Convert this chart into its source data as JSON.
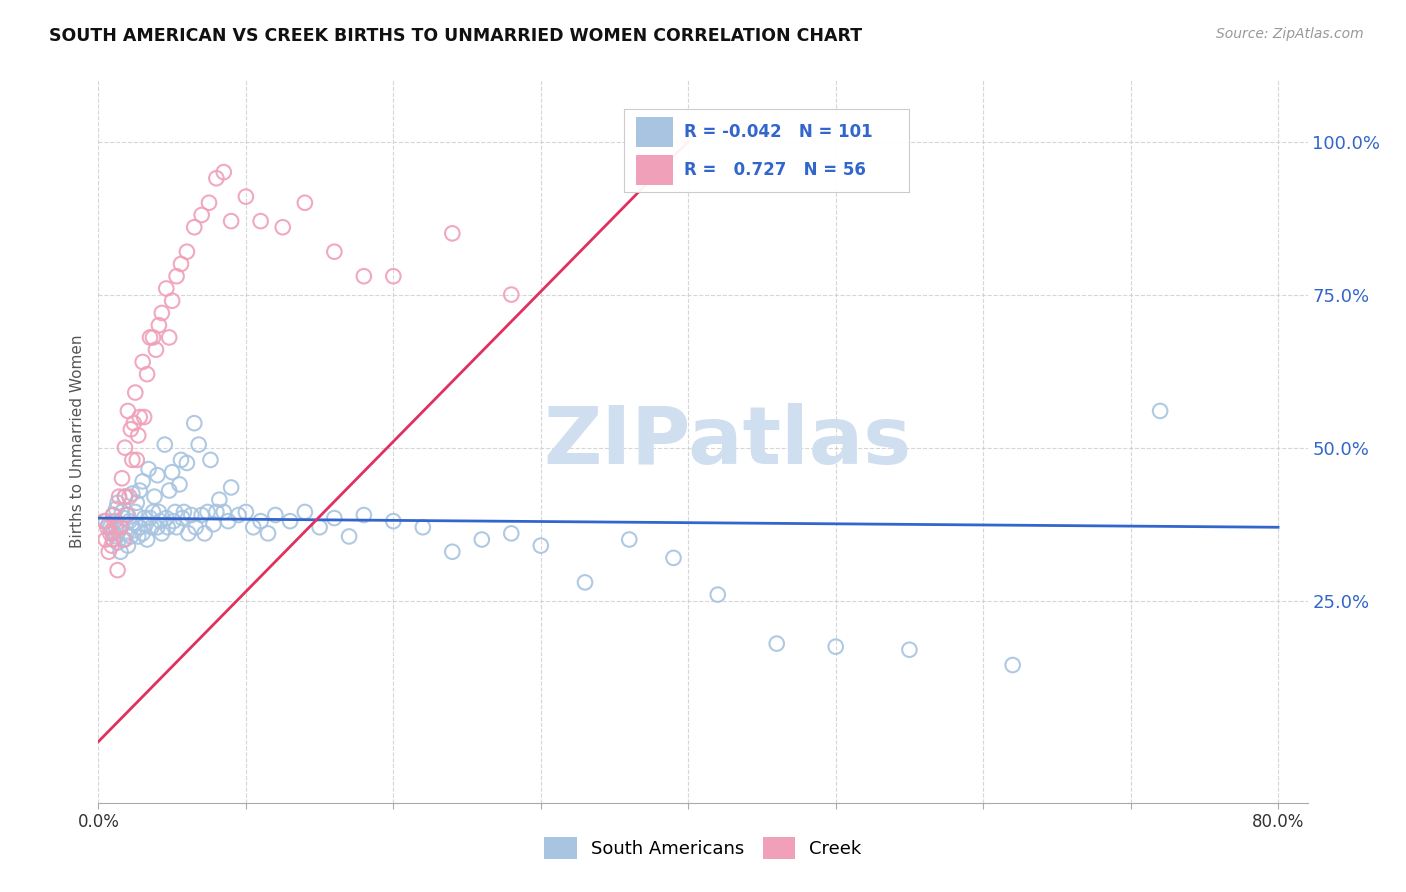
{
  "title": "SOUTH AMERICAN VS CREEK BIRTHS TO UNMARRIED WOMEN CORRELATION CHART",
  "source": "Source: ZipAtlas.com",
  "ylabel": "Births to Unmarried Women",
  "legend_blue_label": "South Americans",
  "legend_pink_label": "Creek",
  "r_blue": "-0.042",
  "n_blue": "101",
  "r_pink": "0.727",
  "n_pink": "56",
  "blue_color": "#a8c4e0",
  "pink_color": "#f0a0b8",
  "blue_line_color": "#3366cc",
  "pink_line_color": "#e03060",
  "watermark_color": "#d0dff0",
  "xlim_min": 0.0,
  "xlim_max": 0.82,
  "ylim_min": -0.08,
  "ylim_max": 1.1,
  "ytick_vals": [
    0.25,
    0.5,
    0.75,
    1.0
  ],
  "ytick_labels": [
    "25.0%",
    "50.0%",
    "75.0%",
    "100.0%"
  ],
  "xtick_vals": [
    0.0,
    0.1,
    0.2,
    0.3,
    0.4,
    0.5,
    0.6,
    0.7,
    0.8
  ],
  "xtick_left_label": "0.0%",
  "xtick_right_label": "80.0%",
  "blue_line_x0": 0.0,
  "blue_line_x1": 0.8,
  "blue_line_y0": 0.385,
  "blue_line_y1": 0.37,
  "pink_line_x0": 0.0,
  "pink_line_x1": 0.4,
  "pink_line_y0": 0.02,
  "pink_line_y1": 1.0,
  "blue_scatter_x": [
    0.005,
    0.007,
    0.008,
    0.009,
    0.01,
    0.01,
    0.01,
    0.012,
    0.012,
    0.013,
    0.013,
    0.014,
    0.015,
    0.015,
    0.016,
    0.017,
    0.018,
    0.018,
    0.019,
    0.02,
    0.02,
    0.021,
    0.022,
    0.023,
    0.024,
    0.025,
    0.025,
    0.026,
    0.027,
    0.028,
    0.028,
    0.03,
    0.03,
    0.031,
    0.032,
    0.033,
    0.034,
    0.035,
    0.036,
    0.037,
    0.038,
    0.04,
    0.04,
    0.041,
    0.042,
    0.043,
    0.045,
    0.046,
    0.047,
    0.048,
    0.05,
    0.051,
    0.052,
    0.053,
    0.055,
    0.056,
    0.057,
    0.058,
    0.06,
    0.061,
    0.063,
    0.065,
    0.066,
    0.068,
    0.07,
    0.072,
    0.074,
    0.076,
    0.078,
    0.08,
    0.082,
    0.085,
    0.088,
    0.09,
    0.095,
    0.1,
    0.105,
    0.11,
    0.115,
    0.12,
    0.13,
    0.14,
    0.15,
    0.16,
    0.17,
    0.18,
    0.2,
    0.22,
    0.24,
    0.26,
    0.28,
    0.3,
    0.33,
    0.36,
    0.39,
    0.42,
    0.46,
    0.5,
    0.55,
    0.62,
    0.72
  ],
  "blue_scatter_y": [
    0.38,
    0.375,
    0.37,
    0.365,
    0.36,
    0.39,
    0.35,
    0.4,
    0.355,
    0.345,
    0.41,
    0.365,
    0.375,
    0.33,
    0.395,
    0.385,
    0.35,
    0.42,
    0.36,
    0.39,
    0.34,
    0.38,
    0.355,
    0.425,
    0.365,
    0.395,
    0.375,
    0.41,
    0.355,
    0.43,
    0.37,
    0.445,
    0.36,
    0.385,
    0.375,
    0.35,
    0.465,
    0.385,
    0.37,
    0.395,
    0.42,
    0.455,
    0.37,
    0.395,
    0.38,
    0.36,
    0.505,
    0.385,
    0.37,
    0.43,
    0.46,
    0.38,
    0.395,
    0.37,
    0.44,
    0.48,
    0.385,
    0.395,
    0.475,
    0.36,
    0.39,
    0.54,
    0.37,
    0.505,
    0.39,
    0.36,
    0.395,
    0.48,
    0.375,
    0.395,
    0.415,
    0.395,
    0.38,
    0.435,
    0.39,
    0.395,
    0.37,
    0.38,
    0.36,
    0.39,
    0.38,
    0.395,
    0.37,
    0.385,
    0.355,
    0.39,
    0.38,
    0.37,
    0.33,
    0.35,
    0.36,
    0.34,
    0.28,
    0.35,
    0.32,
    0.26,
    0.18,
    0.175,
    0.17,
    0.145,
    0.56
  ],
  "pink_scatter_x": [
    0.004,
    0.005,
    0.006,
    0.007,
    0.008,
    0.009,
    0.01,
    0.01,
    0.011,
    0.012,
    0.013,
    0.014,
    0.015,
    0.016,
    0.017,
    0.018,
    0.018,
    0.019,
    0.02,
    0.021,
    0.022,
    0.023,
    0.024,
    0.025,
    0.026,
    0.027,
    0.028,
    0.03,
    0.031,
    0.033,
    0.035,
    0.037,
    0.039,
    0.041,
    0.043,
    0.046,
    0.048,
    0.05,
    0.053,
    0.056,
    0.06,
    0.065,
    0.07,
    0.075,
    0.08,
    0.085,
    0.09,
    0.1,
    0.11,
    0.125,
    0.14,
    0.16,
    0.18,
    0.2,
    0.24,
    0.28
  ],
  "pink_scatter_y": [
    0.38,
    0.35,
    0.37,
    0.33,
    0.36,
    0.34,
    0.39,
    0.35,
    0.38,
    0.37,
    0.3,
    0.42,
    0.37,
    0.45,
    0.35,
    0.5,
    0.42,
    0.39,
    0.56,
    0.42,
    0.53,
    0.48,
    0.54,
    0.59,
    0.48,
    0.52,
    0.55,
    0.64,
    0.55,
    0.62,
    0.68,
    0.68,
    0.66,
    0.7,
    0.72,
    0.76,
    0.68,
    0.74,
    0.78,
    0.8,
    0.82,
    0.86,
    0.88,
    0.9,
    0.94,
    0.95,
    0.87,
    0.91,
    0.87,
    0.86,
    0.9,
    0.82,
    0.78,
    0.78,
    0.85,
    0.75
  ]
}
